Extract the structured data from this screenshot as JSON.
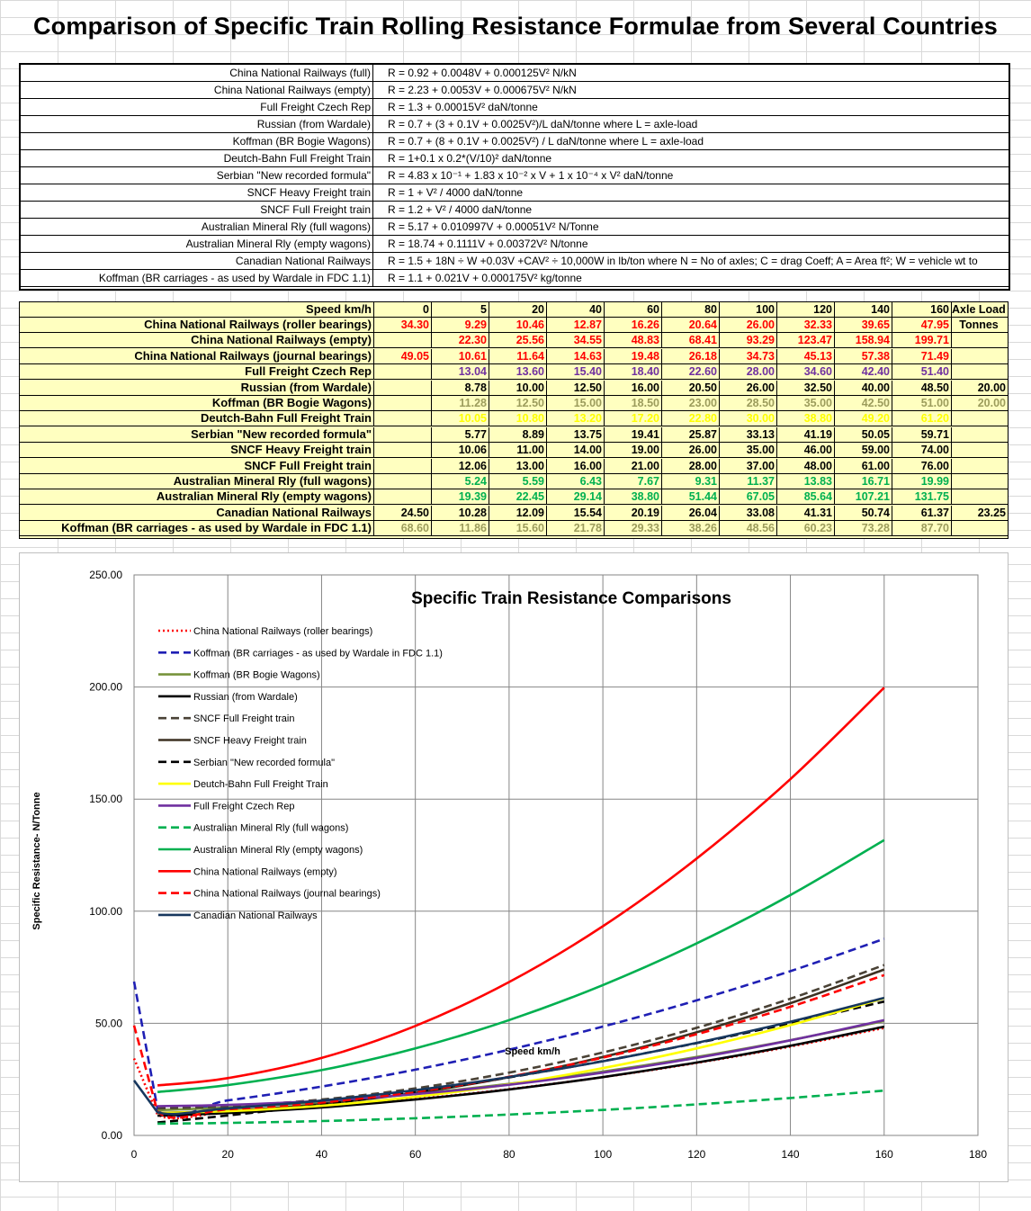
{
  "title": "Comparison of Specific Train Rolling Resistance Formulae from Several Countries",
  "formulas": [
    {
      "name": "China National Railways  (full)",
      "formula": "R = 0.92 + 0.0048V + 0.000125V² N/kN"
    },
    {
      "name": "China National Railways  (empty)",
      "formula": "R = 2.23 + 0.0053V + 0.000675V² N/kN"
    },
    {
      "name": "Full Freight Czech Rep",
      "formula": "R = 1.3 + 0.00015V² daN/tonne"
    },
    {
      "name": "Russian (from Wardale)",
      "formula": "R = 0.7 + (3 + 0.1V + 0.0025V²)/L daN/tonne where L = axle-load"
    },
    {
      "name": "Koffman (BR Bogie Wagons)",
      "formula": "R = 0.7 + (8 + 0.1V + 0.0025V²) / L  daN/tonne where L = axle-load"
    },
    {
      "name": "Deutch-Bahn Full Freight Train",
      "formula": "R = 1+0.1 x 0.2*(V/10)² daN/tonne"
    },
    {
      "name": "Serbian \"New recorded formula\"",
      "formula": "R = 4.83 x 10⁻¹ + 1.83 x 10⁻² x V + 1 x 10⁻⁴ x V² daN/tonne"
    },
    {
      "name": "SNCF Heavy Freight train",
      "formula": "R = 1 + V² / 4000 daN/tonne"
    },
    {
      "name": "SNCF Full Freight train",
      "formula": "R = 1.2 + V² / 4000 daN/tonne"
    },
    {
      "name": "Australian Mineral Rly (full wagons)",
      "formula": "R = 5.17 + 0.010997V + 0.00051V² N/Tonne"
    },
    {
      "name": "Australian Mineral Rly (empty wagons)",
      "formula": "R = 18.74 + 0.1111V + 0.00372V² N/tonne"
    },
    {
      "name": "Canadian National Railways",
      "formula": "R = 1.5 + 18N ÷ W +0.03V +CAV² ÷ 10,000W in lb/ton where N = No of axles; C = drag Coeff; A = Area ft²; W = vehicle wt to"
    },
    {
      "name": "Koffman (BR carriages - as used by Wardale in FDC 1.1)",
      "formula": "R = 1.1 + 0.021V + 0.000175V² kg/tonne"
    }
  ],
  "table": {
    "speed_label": "Speed km/h",
    "speeds": [
      "0",
      "5",
      "20",
      "40",
      "60",
      "80",
      "100",
      "120",
      "140",
      "160"
    ],
    "axle_header_1": "Axle Load",
    "axle_header_2": "Tonnes",
    "rows": [
      {
        "name": "China National Railways (roller bearings)",
        "color": "#ff0000",
        "values": [
          "34.30",
          "9.29",
          "10.46",
          "12.87",
          "16.26",
          "20.64",
          "26.00",
          "32.33",
          "39.65",
          "47.95"
        ],
        "axle": ""
      },
      {
        "name": "China National Railways (empty)",
        "color": "#ff0000",
        "values": [
          "",
          "22.30",
          "25.56",
          "34.55",
          "48.83",
          "68.41",
          "93.29",
          "123.47",
          "158.94",
          "199.71"
        ],
        "axle": ""
      },
      {
        "name": "China National Railways (journal bearings)",
        "color": "#ff0000",
        "values": [
          "49.05",
          "10.61",
          "11.64",
          "14.63",
          "19.48",
          "26.18",
          "34.73",
          "45.13",
          "57.38",
          "71.49"
        ],
        "axle": ""
      },
      {
        "name": "Full Freight Czech Rep",
        "color": "#7030a0",
        "values": [
          "",
          "13.04",
          "13.60",
          "15.40",
          "18.40",
          "22.60",
          "28.00",
          "34.60",
          "42.40",
          "51.40"
        ],
        "axle": ""
      },
      {
        "name": "Russian (from Wardale)",
        "color": "#000000",
        "values": [
          "",
          "8.78",
          "10.00",
          "12.50",
          "16.00",
          "20.50",
          "26.00",
          "32.50",
          "40.00",
          "48.50"
        ],
        "axle": "20.00"
      },
      {
        "name": "Koffman (BR Bogie Wagons)",
        "color": "#9c9c5c",
        "values": [
          "",
          "11.28",
          "12.50",
          "15.00",
          "18.50",
          "23.00",
          "28.50",
          "35.00",
          "42.50",
          "51.00"
        ],
        "axle": "20.00"
      },
      {
        "name": "Deutch-Bahn Full Freight Train",
        "color": "#ffff00",
        "values": [
          "",
          "10.05",
          "10.80",
          "13.20",
          "17.20",
          "22.80",
          "30.00",
          "38.80",
          "49.20",
          "61.20"
        ],
        "axle": ""
      },
      {
        "name": "Serbian \"New recorded formula\"",
        "color": "#000000",
        "values": [
          "",
          "5.77",
          "8.89",
          "13.75",
          "19.41",
          "25.87",
          "33.13",
          "41.19",
          "50.05",
          "59.71"
        ],
        "axle": ""
      },
      {
        "name": "SNCF Heavy Freight train",
        "color": "#000000",
        "values": [
          "",
          "10.06",
          "11.00",
          "14.00",
          "19.00",
          "26.00",
          "35.00",
          "46.00",
          "59.00",
          "74.00"
        ],
        "axle": ""
      },
      {
        "name": "SNCF Full Freight train",
        "color": "#000000",
        "values": [
          "",
          "12.06",
          "13.00",
          "16.00",
          "21.00",
          "28.00",
          "37.00",
          "48.00",
          "61.00",
          "76.00"
        ],
        "axle": ""
      },
      {
        "name": "Australian Mineral Rly (full wagons)",
        "color": "#00b050",
        "values": [
          "",
          "5.24",
          "5.59",
          "6.43",
          "7.67",
          "9.31",
          "11.37",
          "13.83",
          "16.71",
          "19.99"
        ],
        "axle": ""
      },
      {
        "name": "Australian Mineral Rly (empty wagons)",
        "color": "#00b050",
        "values": [
          "",
          "19.39",
          "22.45",
          "29.14",
          "38.80",
          "51.44",
          "67.05",
          "85.64",
          "107.21",
          "131.75"
        ],
        "axle": ""
      },
      {
        "name": "Canadian National Railways",
        "color": "#000000",
        "values": [
          "24.50",
          "10.28",
          "12.09",
          "15.54",
          "20.19",
          "26.04",
          "33.08",
          "41.31",
          "50.74",
          "61.37"
        ],
        "axle": "23.25"
      },
      {
        "name": "Koffman (BR carriages - as used by Wardale in FDC 1.1)",
        "color": "#9c9c5c",
        "values": [
          "68.60",
          "11.86",
          "15.60",
          "21.78",
          "29.33",
          "38.26",
          "48.56",
          "60.23",
          "73.28",
          "87.70"
        ],
        "axle": ""
      }
    ]
  },
  "chart_data": {
    "type": "line",
    "title": "Specific Train Resistance Comparisons",
    "xlabel": "Speed km/h",
    "ylabel": "Specific Resistance- N/Tonne",
    "xlim": [
      0,
      180
    ],
    "ylim": [
      0,
      250
    ],
    "xticks": [
      "0",
      "20",
      "40",
      "60",
      "80",
      "100",
      "120",
      "140",
      "160",
      "180"
    ],
    "yticks": [
      "0.00",
      "50.00",
      "100.00",
      "150.00",
      "200.00",
      "250.00"
    ],
    "legend_position": "top-left",
    "x": [
      0,
      5,
      20,
      40,
      60,
      80,
      100,
      120,
      140,
      160
    ],
    "series": [
      {
        "name": "China National Railways  (roller bearings)",
        "color": "#ff0000",
        "dash": "dot",
        "values": [
          34.3,
          9.29,
          10.46,
          12.87,
          16.26,
          20.64,
          26.0,
          32.33,
          39.65,
          47.95
        ]
      },
      {
        "name": "Koffman (BR carriages - as used by Wardale in FDC 1.1)",
        "color": "#1f1fb4",
        "dash": "dash",
        "values": [
          68.6,
          11.86,
          15.6,
          21.78,
          29.33,
          38.26,
          48.56,
          60.23,
          73.28,
          87.7
        ]
      },
      {
        "name": "Koffman (BR Bogie Wagons)",
        "color": "#77933c",
        "dash": "solid",
        "values": [
          null,
          11.28,
          12.5,
          15.0,
          18.5,
          23.0,
          28.5,
          35.0,
          42.5,
          51.0
        ]
      },
      {
        "name": "Russian (from Wardale)",
        "color": "#000000",
        "dash": "solid",
        "values": [
          null,
          8.78,
          10.0,
          12.5,
          16.0,
          20.5,
          26.0,
          32.5,
          40.0,
          48.5
        ]
      },
      {
        "name": "SNCF Full Freight train",
        "color": "#4a4236",
        "dash": "dash",
        "values": [
          null,
          12.06,
          13.0,
          16.0,
          21.0,
          28.0,
          37.0,
          48.0,
          61.0,
          76.0
        ]
      },
      {
        "name": "SNCF Heavy Freight train",
        "color": "#3d3122",
        "dash": "solid",
        "values": [
          null,
          10.06,
          11.0,
          14.0,
          19.0,
          26.0,
          35.0,
          46.0,
          59.0,
          74.0
        ]
      },
      {
        "name": "Serbian \"New recorded formula\"",
        "color": "#000000",
        "dash": "dash",
        "values": [
          null,
          5.77,
          8.89,
          13.75,
          19.41,
          25.87,
          33.13,
          41.19,
          50.05,
          59.71
        ]
      },
      {
        "name": "Deutch-Bahn Full Freight Train",
        "color": "#ffff00",
        "dash": "solid",
        "values": [
          null,
          10.05,
          10.8,
          13.2,
          17.2,
          22.8,
          30.0,
          38.8,
          49.2,
          61.2
        ]
      },
      {
        "name": "Full Freight Czech Rep",
        "color": "#7030a0",
        "dash": "solid",
        "values": [
          null,
          13.04,
          13.6,
          15.4,
          18.4,
          22.6,
          28.0,
          34.6,
          42.4,
          51.4
        ]
      },
      {
        "name": "Australian Mineral Rly (full wagons)",
        "color": "#00b050",
        "dash": "dash",
        "values": [
          null,
          5.24,
          5.59,
          6.43,
          7.67,
          9.31,
          11.37,
          13.83,
          16.71,
          19.99
        ]
      },
      {
        "name": "Australian Mineral Rly (empty wagons)",
        "color": "#00b050",
        "dash": "solid",
        "values": [
          null,
          19.39,
          22.45,
          29.14,
          38.8,
          51.44,
          67.05,
          85.64,
          107.21,
          131.75
        ]
      },
      {
        "name": "China National Railways  (empty)",
        "color": "#ff0000",
        "dash": "solid",
        "values": [
          null,
          22.3,
          25.56,
          34.55,
          48.83,
          68.41,
          93.29,
          123.47,
          158.94,
          199.71
        ]
      },
      {
        "name": "China National Railways  (journal bearings)",
        "color": "#ff0000",
        "dash": "dash",
        "values": [
          49.05,
          10.61,
          11.64,
          14.63,
          19.48,
          26.18,
          34.73,
          45.13,
          57.38,
          71.49
        ]
      },
      {
        "name": "Canadian National Railways",
        "color": "#17375e",
        "dash": "solid",
        "values": [
          24.5,
          10.28,
          12.09,
          15.54,
          20.19,
          26.04,
          33.08,
          41.31,
          50.74,
          61.37
        ]
      }
    ]
  }
}
